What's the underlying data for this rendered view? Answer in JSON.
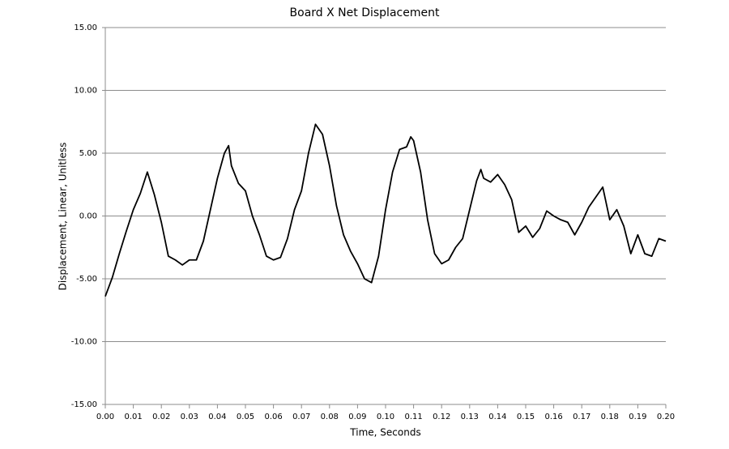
{
  "chart_data": {
    "type": "line",
    "title": "Board X Net Displacement",
    "x_label": "Time, Seconds",
    "y_label": "Displacement, Linear, Unitless",
    "color": "#000000",
    "grid": true,
    "xlim": [
      0,
      0.2
    ],
    "ylim": [
      -15,
      15
    ],
    "xticks": [
      {
        "value": 0,
        "label": "0.00"
      },
      {
        "value": 0.01,
        "label": "0.01"
      },
      {
        "value": 0.02,
        "label": "0.02"
      },
      {
        "value": 0.03,
        "label": "0.03"
      },
      {
        "value": 0.04,
        "label": "0.04"
      },
      {
        "value": 0.05,
        "label": "0.05"
      },
      {
        "value": 0.06,
        "label": "0.06"
      },
      {
        "value": 0.07,
        "label": "0.07"
      },
      {
        "value": 0.08,
        "label": "0.08"
      },
      {
        "value": 0.09,
        "label": "0.09"
      },
      {
        "value": 0.1,
        "label": "0.10"
      },
      {
        "value": 0.11,
        "label": "0.11"
      },
      {
        "value": 0.12,
        "label": "0.12"
      },
      {
        "value": 0.13,
        "label": "0.13"
      },
      {
        "value": 0.14,
        "label": "0.14"
      },
      {
        "value": 0.15,
        "label": "0.15"
      },
      {
        "value": 0.16,
        "label": "0.16"
      },
      {
        "value": 0.17,
        "label": "0.17"
      },
      {
        "value": 0.18,
        "label": "0.18"
      },
      {
        "value": 0.19,
        "label": "0.19"
      },
      {
        "value": 0.2,
        "label": "0.20"
      }
    ],
    "yticks": [
      {
        "value": -15,
        "label": "-15.00"
      },
      {
        "value": -10,
        "label": "-10.00"
      },
      {
        "value": -5,
        "label": "-5.00"
      },
      {
        "value": 0,
        "label": "0.00"
      },
      {
        "value": 5,
        "label": "5.00"
      },
      {
        "value": 10,
        "label": "10.00"
      },
      {
        "value": 15,
        "label": "15.00"
      }
    ],
    "x": [
      0,
      0.0025,
      0.005,
      0.0075,
      0.01,
      0.0125,
      0.015,
      0.0175,
      0.02,
      0.0225,
      0.025,
      0.0275,
      0.03,
      0.0325,
      0.035,
      0.0375,
      0.04,
      0.0425,
      0.044,
      0.045,
      0.0475,
      0.05,
      0.0525,
      0.055,
      0.0575,
      0.06,
      0.0625,
      0.065,
      0.0675,
      0.07,
      0.0725,
      0.075,
      0.0775,
      0.08,
      0.0825,
      0.085,
      0.0875,
      0.09,
      0.0925,
      0.095,
      0.0975,
      0.1,
      0.1025,
      0.105,
      0.1075,
      0.109,
      0.11,
      0.1125,
      0.115,
      0.1175,
      0.12,
      0.1225,
      0.125,
      0.1275,
      0.13,
      0.1325,
      0.134,
      0.135,
      0.1375,
      0.14,
      0.1425,
      0.145,
      0.1475,
      0.15,
      0.1525,
      0.155,
      0.1575,
      0.16,
      0.1625,
      0.165,
      0.1675,
      0.17,
      0.1725,
      0.175,
      0.1775,
      0.18,
      0.1825,
      0.185,
      0.1875,
      0.19,
      0.1925,
      0.195,
      0.1975,
      0.2
    ],
    "values": [
      -6.4,
      -4.9,
      -3.0,
      -1.2,
      0.5,
      1.8,
      3.5,
      1.7,
      -0.5,
      -3.2,
      -3.5,
      -3.9,
      -3.5,
      -3.5,
      -2.0,
      0.5,
      3.0,
      5.0,
      5.6,
      4.0,
      2.6,
      2.0,
      0.0,
      -1.5,
      -3.2,
      -3.5,
      -3.3,
      -1.8,
      0.5,
      2.0,
      5.0,
      7.3,
      6.5,
      4.0,
      0.8,
      -1.5,
      -2.8,
      -3.8,
      -5.0,
      -5.3,
      -3.2,
      0.5,
      3.5,
      5.3,
      5.5,
      6.3,
      6.0,
      3.5,
      -0.3,
      -3.0,
      -3.8,
      -3.5,
      -2.5,
      -1.8,
      0.5,
      2.8,
      3.7,
      3.0,
      2.7,
      3.3,
      2.5,
      1.3,
      -1.3,
      -0.8,
      -1.7,
      -1.0,
      0.4,
      0.0,
      -0.3,
      -0.5,
      -1.5,
      -0.5,
      0.7,
      1.5,
      2.3,
      -0.3,
      0.5,
      -0.8,
      -3.0,
      -1.5,
      -3.0,
      -3.2,
      -1.8,
      -2.0
    ]
  }
}
